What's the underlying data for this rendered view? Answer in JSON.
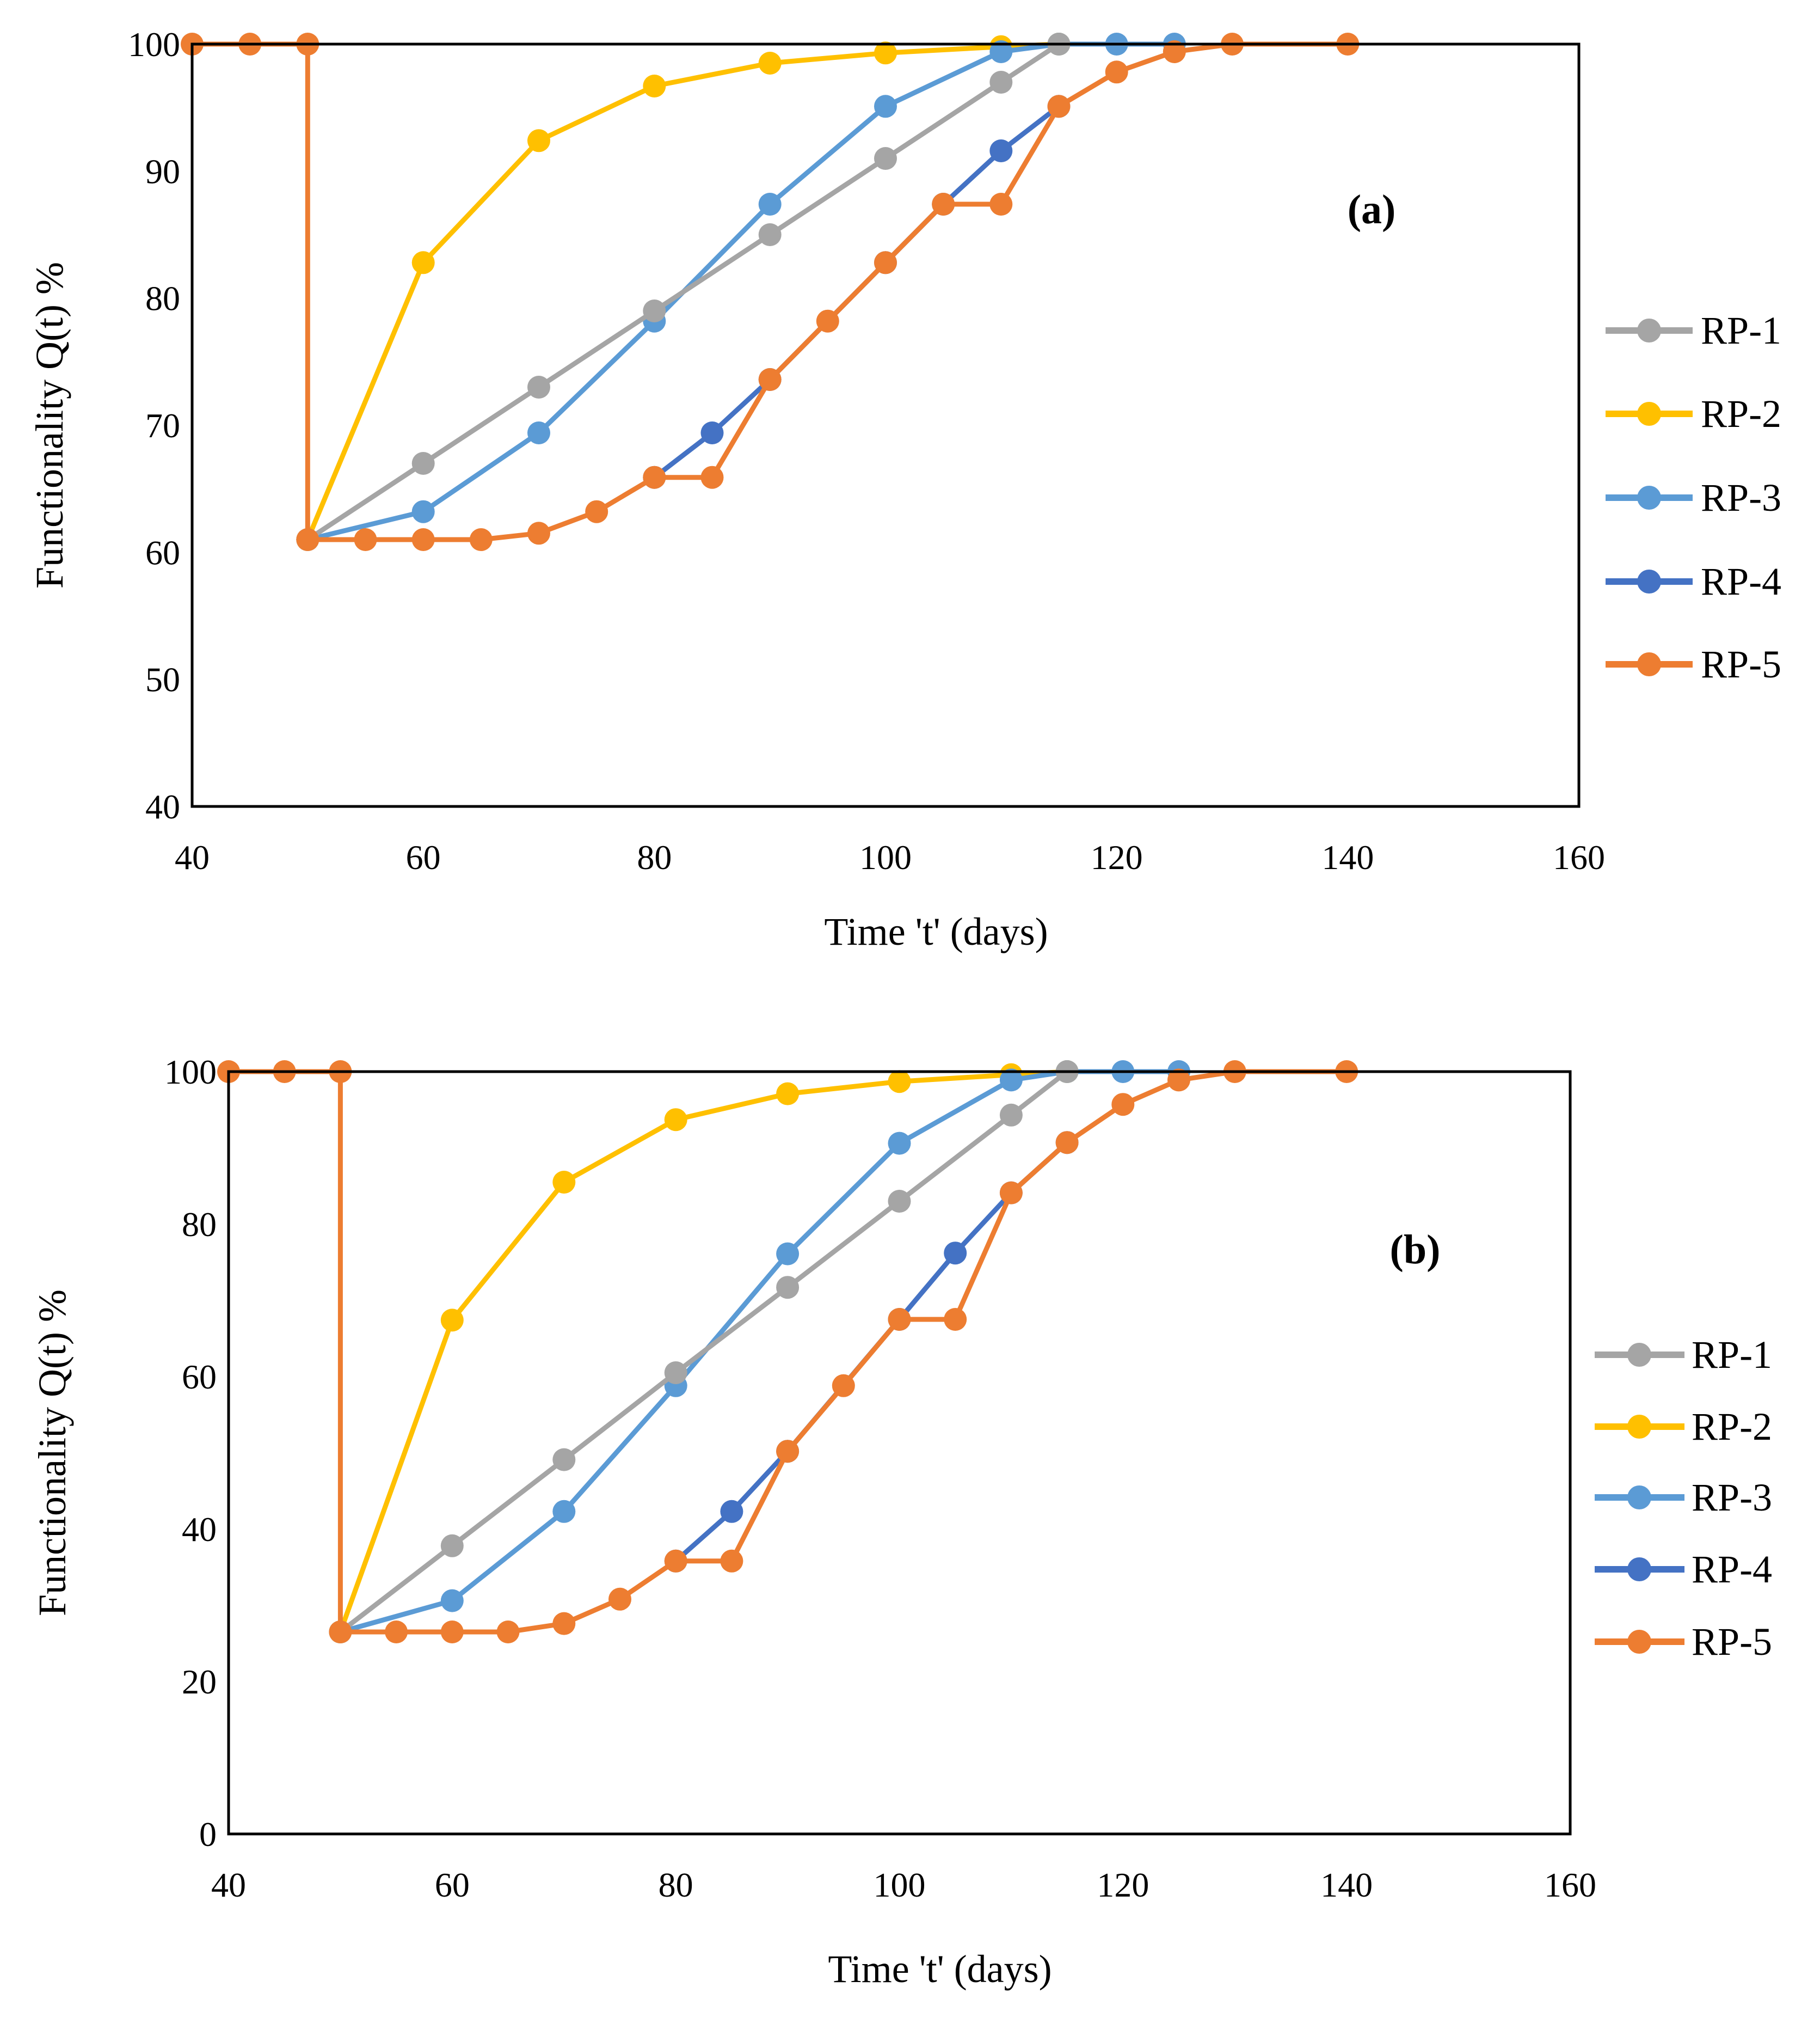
{
  "series_colors": {
    "RP-1": "#A5A5A5",
    "RP-2": "#FFC000",
    "RP-3": "#5B9BD5",
    "RP-4": "#4472C4",
    "RP-5": "#ED7D31"
  },
  "chart_data": [
    {
      "type": "line",
      "panel_label": "(a)",
      "xlabel": "Time 't' (days)",
      "ylabel": "Functionality Q(t) %",
      "xlim": [
        40,
        160
      ],
      "ylim": [
        40,
        100
      ],
      "xticks": [
        40,
        60,
        80,
        100,
        120,
        140,
        160
      ],
      "yticks": [
        40,
        50,
        60,
        70,
        80,
        90,
        100
      ],
      "legend": [
        "RP-1",
        "RP-2",
        "RP-3",
        "RP-4",
        "RP-5"
      ],
      "series": [
        {
          "name": "RP-1",
          "x": [
            50,
            60,
            70,
            80,
            90,
            100,
            110,
            115
          ],
          "y": [
            61,
            67,
            73,
            79,
            85,
            91,
            97,
            100
          ]
        },
        {
          "name": "RP-2",
          "x": [
            50,
            60,
            70,
            80,
            90,
            100,
            110,
            115
          ],
          "y": [
            61,
            82.8,
            92.4,
            96.7,
            98.5,
            99.3,
            99.8,
            100
          ]
        },
        {
          "name": "RP-3",
          "x": [
            50,
            60,
            70,
            80,
            90,
            100,
            110,
            115,
            120,
            125
          ],
          "y": [
            61,
            63.2,
            69.4,
            78.2,
            87.4,
            95.1,
            99.4,
            100,
            100,
            100
          ]
        },
        {
          "name": "RP-4",
          "x": [
            80,
            85,
            90,
            100,
            105,
            110,
            115
          ],
          "y": [
            65.9,
            69.4,
            73.6,
            82.8,
            87.4,
            91.6,
            95.1
          ]
        },
        {
          "name": "RP-5",
          "x": [
            40,
            45,
            50,
            50,
            55,
            60,
            65,
            70,
            75,
            80,
            85,
            90,
            95,
            100,
            105,
            110,
            115,
            120,
            125,
            130,
            140
          ],
          "y": [
            100,
            100,
            100,
            61,
            61,
            61,
            61,
            61.5,
            63.2,
            65.9,
            65.9,
            73.6,
            78.2,
            82.8,
            87.4,
            87.4,
            95.1,
            97.8,
            99.4,
            100,
            100
          ]
        }
      ]
    },
    {
      "type": "line",
      "panel_label": "(b)",
      "xlabel": "Time 't' (days)",
      "ylabel": "Functionality Q(t) %",
      "xlim": [
        40,
        160
      ],
      "ylim": [
        0,
        100
      ],
      "xticks": [
        40,
        60,
        80,
        100,
        120,
        140,
        160
      ],
      "yticks": [
        0,
        20,
        40,
        60,
        80,
        100
      ],
      "legend": [
        "RP-1",
        "RP-2",
        "RP-3",
        "RP-4",
        "RP-5"
      ],
      "series": [
        {
          "name": "RP-1",
          "x": [
            50,
            60,
            70,
            80,
            90,
            100,
            110,
            115
          ],
          "y": [
            26.5,
            37.8,
            49.1,
            60.5,
            71.7,
            83,
            94.3,
            100
          ]
        },
        {
          "name": "RP-2",
          "x": [
            50,
            60,
            70,
            80,
            90,
            100,
            110,
            115
          ],
          "y": [
            26.5,
            67.4,
            85.5,
            93.7,
            97.1,
            98.7,
            99.6,
            100
          ]
        },
        {
          "name": "RP-3",
          "x": [
            50,
            60,
            70,
            80,
            90,
            100,
            110,
            115,
            120,
            125
          ],
          "y": [
            26.5,
            30.6,
            42.3,
            58.8,
            76.1,
            90.6,
            98.9,
            100,
            100,
            100
          ]
        },
        {
          "name": "RP-4",
          "x": [
            80,
            85,
            90,
            100,
            105,
            110,
            115
          ],
          "y": [
            35.8,
            42.3,
            50.2,
            67.5,
            76.2,
            84.1,
            90.7
          ]
        },
        {
          "name": "RP-5",
          "x": [
            40,
            45,
            50,
            50,
            55,
            60,
            65,
            70,
            75,
            80,
            85,
            90,
            95,
            100,
            105,
            110,
            115,
            120,
            125,
            130,
            140
          ],
          "y": [
            100,
            100,
            100,
            26.5,
            26.5,
            26.5,
            26.5,
            27.6,
            30.8,
            35.8,
            35.8,
            50.2,
            58.8,
            67.5,
            67.5,
            84.1,
            90.7,
            95.7,
            98.9,
            100,
            100
          ]
        }
      ]
    }
  ]
}
